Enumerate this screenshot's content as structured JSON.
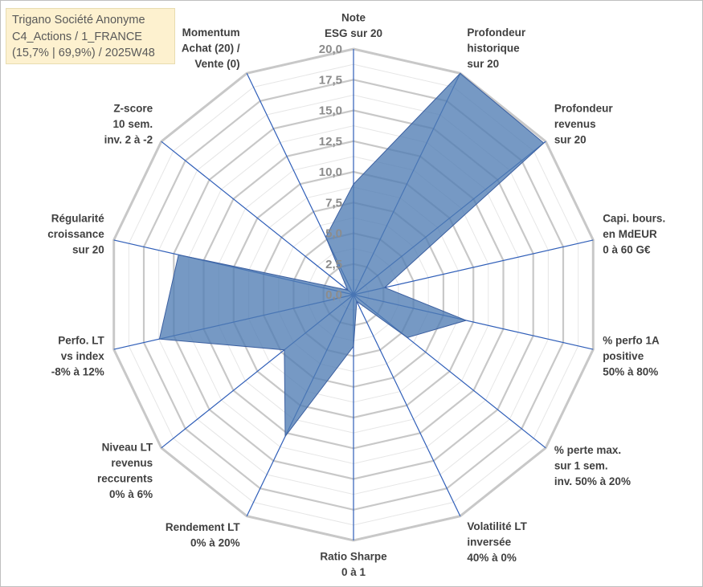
{
  "title": {
    "line1": "Trigano Société Anonyme",
    "line2": "C4_Actions / 1_FRANCE",
    "line3": "(15,7% | 69,9%) / 2025W48"
  },
  "colors": {
    "fill": "#4f7cb3",
    "stroke": "#3b5fa0",
    "axis": "#2f5eb8",
    "grid_major": "#c8c8c8",
    "grid_minor": "#e6e6e6",
    "tick": "#8c8c8c",
    "label": "#404040",
    "title_bg": "#fdf1cf"
  },
  "chart_data": {
    "type": "radar",
    "range": [
      0,
      20
    ],
    "tick_labels": [
      "0,0",
      "2,5",
      "5,0",
      "7,5",
      "10,0",
      "12,5",
      "15,0",
      "17,5",
      "20,0"
    ],
    "axes": [
      {
        "name": "note-esg",
        "lines": [
          "Note",
          "ESG sur 20"
        ]
      },
      {
        "name": "profondeur-historique",
        "lines": [
          "Profondeur",
          "historique",
          "sur 20"
        ]
      },
      {
        "name": "profondeur-revenus",
        "lines": [
          "Profondeur",
          "revenus",
          "sur 20"
        ]
      },
      {
        "name": "capi-bours",
        "lines": [
          "Capi. bours.",
          "en MdEUR",
          "0 à 60 G€"
        ]
      },
      {
        "name": "perfo-1a",
        "lines": [
          "% perfo 1A",
          "positive",
          "50% à 80%"
        ]
      },
      {
        "name": "perte-max",
        "lines": [
          "% perte max.",
          "sur 1 sem.",
          "inv. 50% à 20%"
        ]
      },
      {
        "name": "volatilite-lt",
        "lines": [
          "Volatilité LT",
          "inversée",
          "40% à 0%"
        ]
      },
      {
        "name": "ratio-sharpe",
        "lines": [
          "Ratio Sharpe",
          "0 à 1"
        ]
      },
      {
        "name": "rendement-lt",
        "lines": [
          "Rendement LT",
          "0% à 20%"
        ]
      },
      {
        "name": "niveau-lt-revenus",
        "lines": [
          "Niveau LT",
          "revenus",
          "reccurents",
          "0% à 6%"
        ]
      },
      {
        "name": "perfo-lt-index",
        "lines": [
          "Perfo. LT",
          "vs index",
          "-8% à 12%"
        ]
      },
      {
        "name": "regularite-croissance",
        "lines": [
          "Régularité",
          "croissance",
          "sur 20"
        ]
      },
      {
        "name": "z-score",
        "lines": [
          "Z-score",
          "10 sem.",
          "inv. 2 à -2"
        ]
      },
      {
        "name": "momentum",
        "lines": [
          "Momentum",
          "Achat (20) /",
          "Vente (0)"
        ]
      }
    ],
    "series": [
      {
        "name": "Trigano Société Anonyme",
        "values": [
          9.0,
          20.0,
          19.8,
          2.6,
          9.4,
          5.6,
          0.6,
          4.2,
          12.8,
          7.2,
          16.2,
          14.6,
          0.6,
          5.2
        ]
      }
    ]
  }
}
